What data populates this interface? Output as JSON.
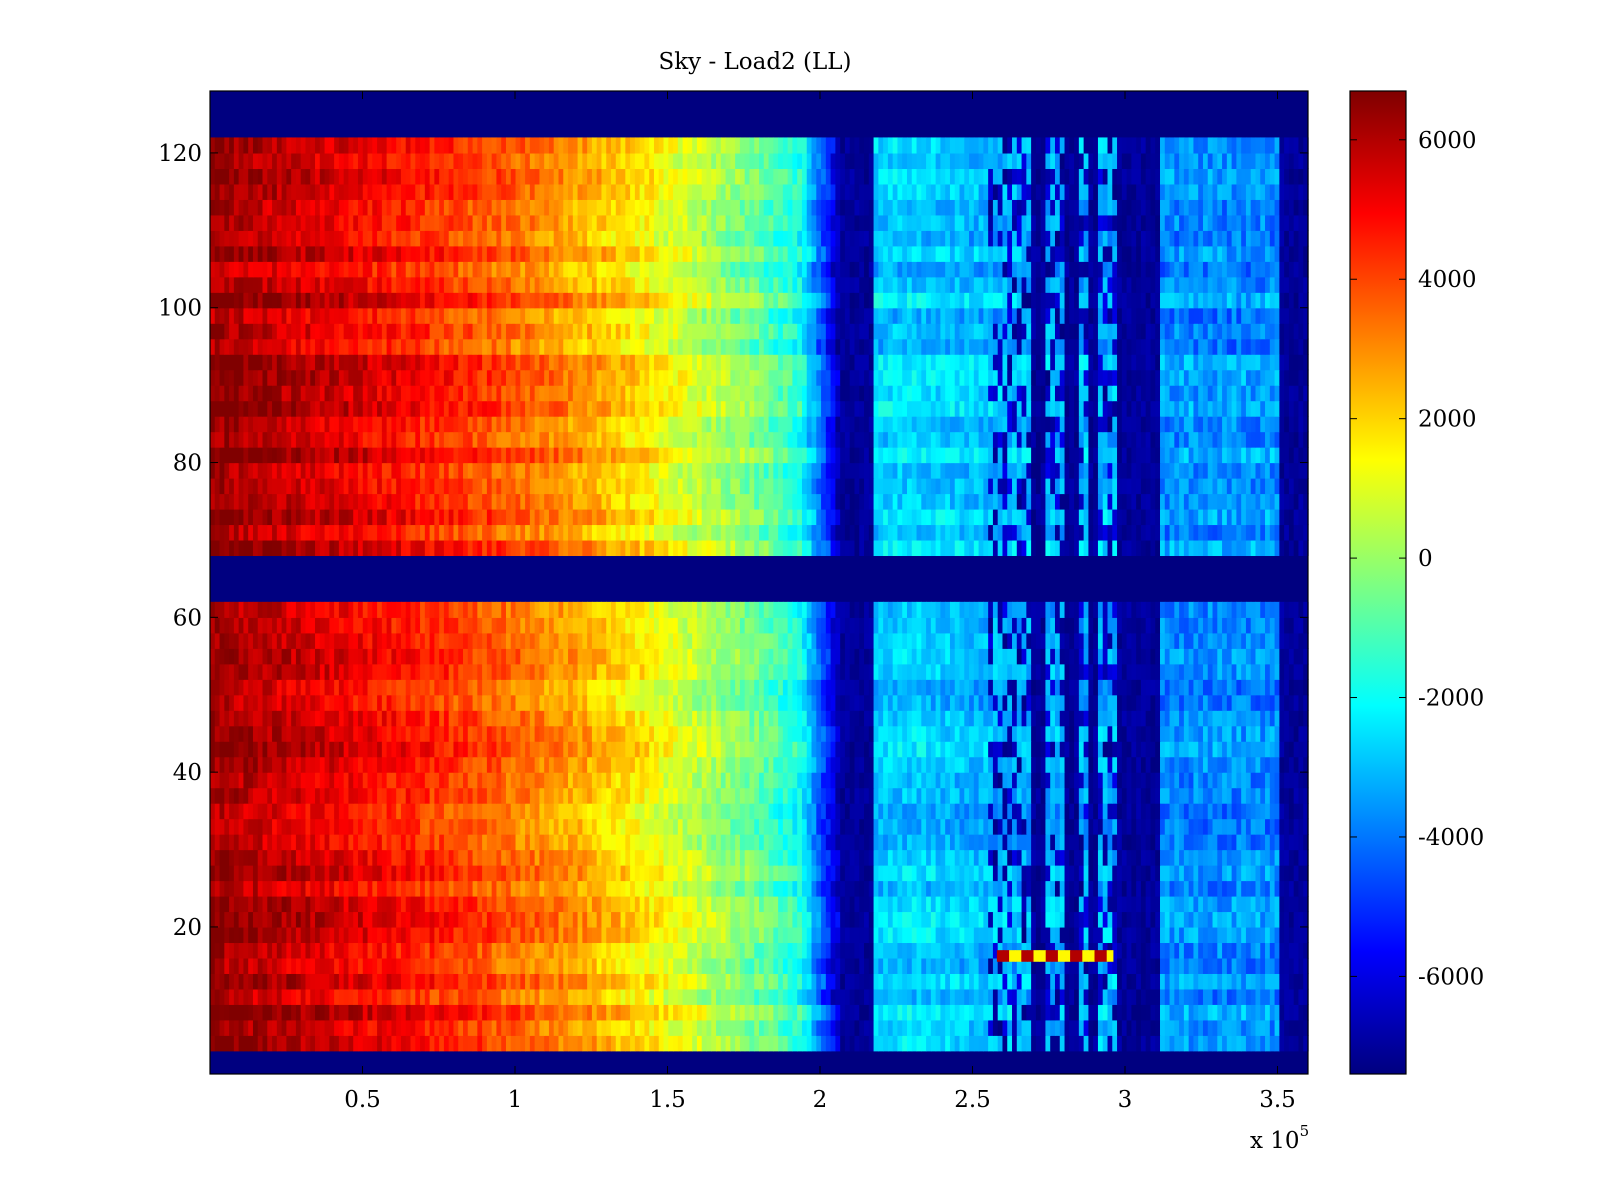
{
  "chart_data": {
    "type": "heatmap",
    "title": "Sky - Load2 (LL)",
    "xlabel": "",
    "ylabel": "",
    "x_multiplier_label": "x 10",
    "x_multiplier_exponent": "5",
    "xlim": [
      0,
      3.6
    ],
    "ylim": [
      1,
      128
    ],
    "x_ticks": [
      0.5,
      1,
      1.5,
      2,
      2.5,
      3,
      3.5
    ],
    "x_tick_labels": [
      "0.5",
      "1",
      "1.5",
      "2",
      "2.5",
      "3",
      "3.5"
    ],
    "y_ticks": [
      20,
      40,
      60,
      80,
      100,
      120
    ],
    "y_tick_labels": [
      "20",
      "40",
      "60",
      "80",
      "100",
      "120"
    ],
    "colorbar": {
      "colormap": "jet",
      "clim": [
        -7400,
        6700
      ],
      "ticks": [
        6000,
        4000,
        2000,
        0,
        -2000,
        -4000,
        -6000
      ],
      "tick_labels": [
        "6000",
        "4000",
        "2000",
        "0",
        "-2000",
        "-4000",
        "-6000"
      ]
    },
    "row_groups": [
      {
        "name": "blank-bottom",
        "rows": [
          1,
          4
        ],
        "value": -7400
      },
      {
        "name": "band-lower",
        "rows": [
          4,
          62
        ],
        "value": "gradient"
      },
      {
        "name": "blank-middle",
        "rows": [
          62,
          68
        ],
        "value": -7400
      },
      {
        "name": "band-upper",
        "rows": [
          68,
          121
        ],
        "value": "gradient"
      },
      {
        "name": "blank-top",
        "rows": [
          121,
          128
        ],
        "value": -7400
      }
    ],
    "column_profile": {
      "x_units": "x 10^5",
      "x": [
        0.0,
        0.3,
        0.5,
        0.8,
        1.0,
        1.2,
        1.4,
        1.6,
        1.8,
        1.93,
        2.06,
        2.17,
        2.3,
        2.55
      ],
      "values": [
        6500,
        5700,
        5200,
        4300,
        3600,
        2800,
        1800,
        600,
        -600,
        -1700,
        -6700,
        -2700,
        -2600,
        -3000
      ]
    },
    "low_gaps_x": [
      [
        2.06,
        2.17
      ],
      [
        2.68,
        2.73
      ],
      [
        2.8,
        2.84
      ],
      [
        2.87,
        2.9
      ],
      [
        2.96,
        3.1
      ],
      [
        3.5,
        3.6
      ]
    ],
    "notable_stripes": [
      {
        "row": 16,
        "x_range": [
          2.58,
          2.95
        ],
        "value": 6000
      }
    ]
  }
}
